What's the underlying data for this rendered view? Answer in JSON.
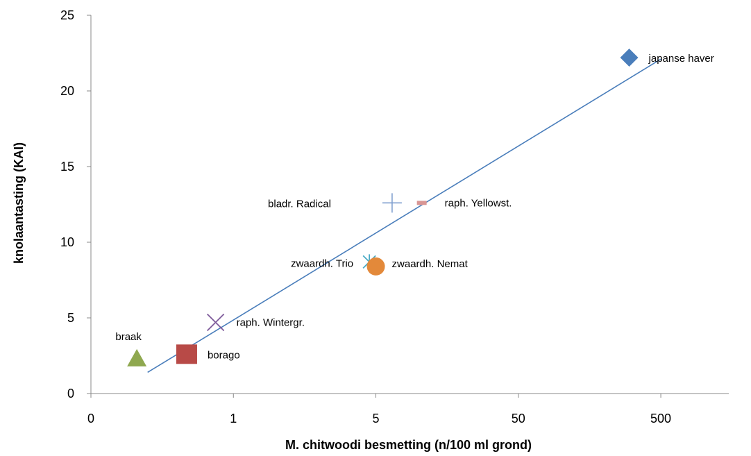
{
  "chart_data": {
    "type": "scatter",
    "title": "",
    "xlabel": "M. chitwoodi besmetting (n/100 ml grond)",
    "ylabel": "knolaantasting (KAI)",
    "x_scale": "log",
    "x_ticks": [
      {
        "value": 0.1,
        "label": "0"
      },
      {
        "value": 1,
        "label": "1"
      },
      {
        "value": 10,
        "label": "5"
      },
      {
        "value": 100,
        "label": "50"
      },
      {
        "value": 1000,
        "label": "500"
      }
    ],
    "xlim": [
      0.1,
      3000
    ],
    "y_ticks": [
      0,
      5,
      10,
      15,
      20,
      25
    ],
    "ylim": [
      0,
      25
    ],
    "grid": false,
    "legend": "none",
    "points": [
      {
        "label": "japanse haver",
        "x": 600,
        "y": 22.2,
        "marker": "diamond",
        "color": "#4a7ebb"
      },
      {
        "label": "bladr. Radical",
        "x": 13,
        "y": 12.6,
        "marker": "plus",
        "color": "#7f9fcf"
      },
      {
        "label": "raph. Yellowst.",
        "x": 21,
        "y": 12.6,
        "marker": "dash",
        "color": "#d99694"
      },
      {
        "label": "zwaardh. Trio",
        "x": 9,
        "y": 8.7,
        "marker": "asterisk",
        "color": "#4bacc6"
      },
      {
        "label": "zwaardh. Nemat",
        "x": 10,
        "y": 8.4,
        "marker": "circle",
        "color": "#e3893a"
      },
      {
        "label": "raph. Wintergr.",
        "x": 0.75,
        "y": 4.7,
        "marker": "x",
        "color": "#7d5a9a"
      },
      {
        "label": "braak",
        "x": 0.21,
        "y": 2.3,
        "marker": "triangle",
        "color": "#8fa84f"
      },
      {
        "label": "borago",
        "x": 0.47,
        "y": 2.6,
        "marker": "square",
        "color": "#b84a47"
      }
    ],
    "trendline": {
      "x": [
        0.25,
        1000
      ],
      "y": [
        1.4,
        22.1
      ],
      "color": "#4a7ebb"
    }
  }
}
